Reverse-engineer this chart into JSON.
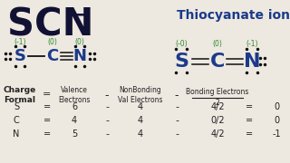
{
  "bg_color": "#ede8e0",
  "title_text": "SCN",
  "title_superscript": "−",
  "subtitle": "Thiocyanate ion",
  "title_color": "#111133",
  "subtitle_color": "#1a3a8a",
  "atom_color": "#1a3a8a",
  "dot_color": "#111111",
  "charge_color": "#2a8a2a",
  "table_color": "#222222",
  "rows": [
    {
      "element": "S",
      "valence": "6",
      "nonbonding": "4",
      "bonding": "4/2",
      "result": "0"
    },
    {
      "element": "C",
      "valence": "4",
      "nonbonding": "4",
      "bonding": "0/2",
      "result": "0"
    },
    {
      "element": "N",
      "valence": "5",
      "nonbonding": "4",
      "bonding": "4/2",
      "result": "-1"
    }
  ],
  "left_charges": [
    "(-1)",
    "(0)",
    "(0)"
  ],
  "right_charges": [
    "(-0)",
    "(0)",
    "(-1)"
  ]
}
